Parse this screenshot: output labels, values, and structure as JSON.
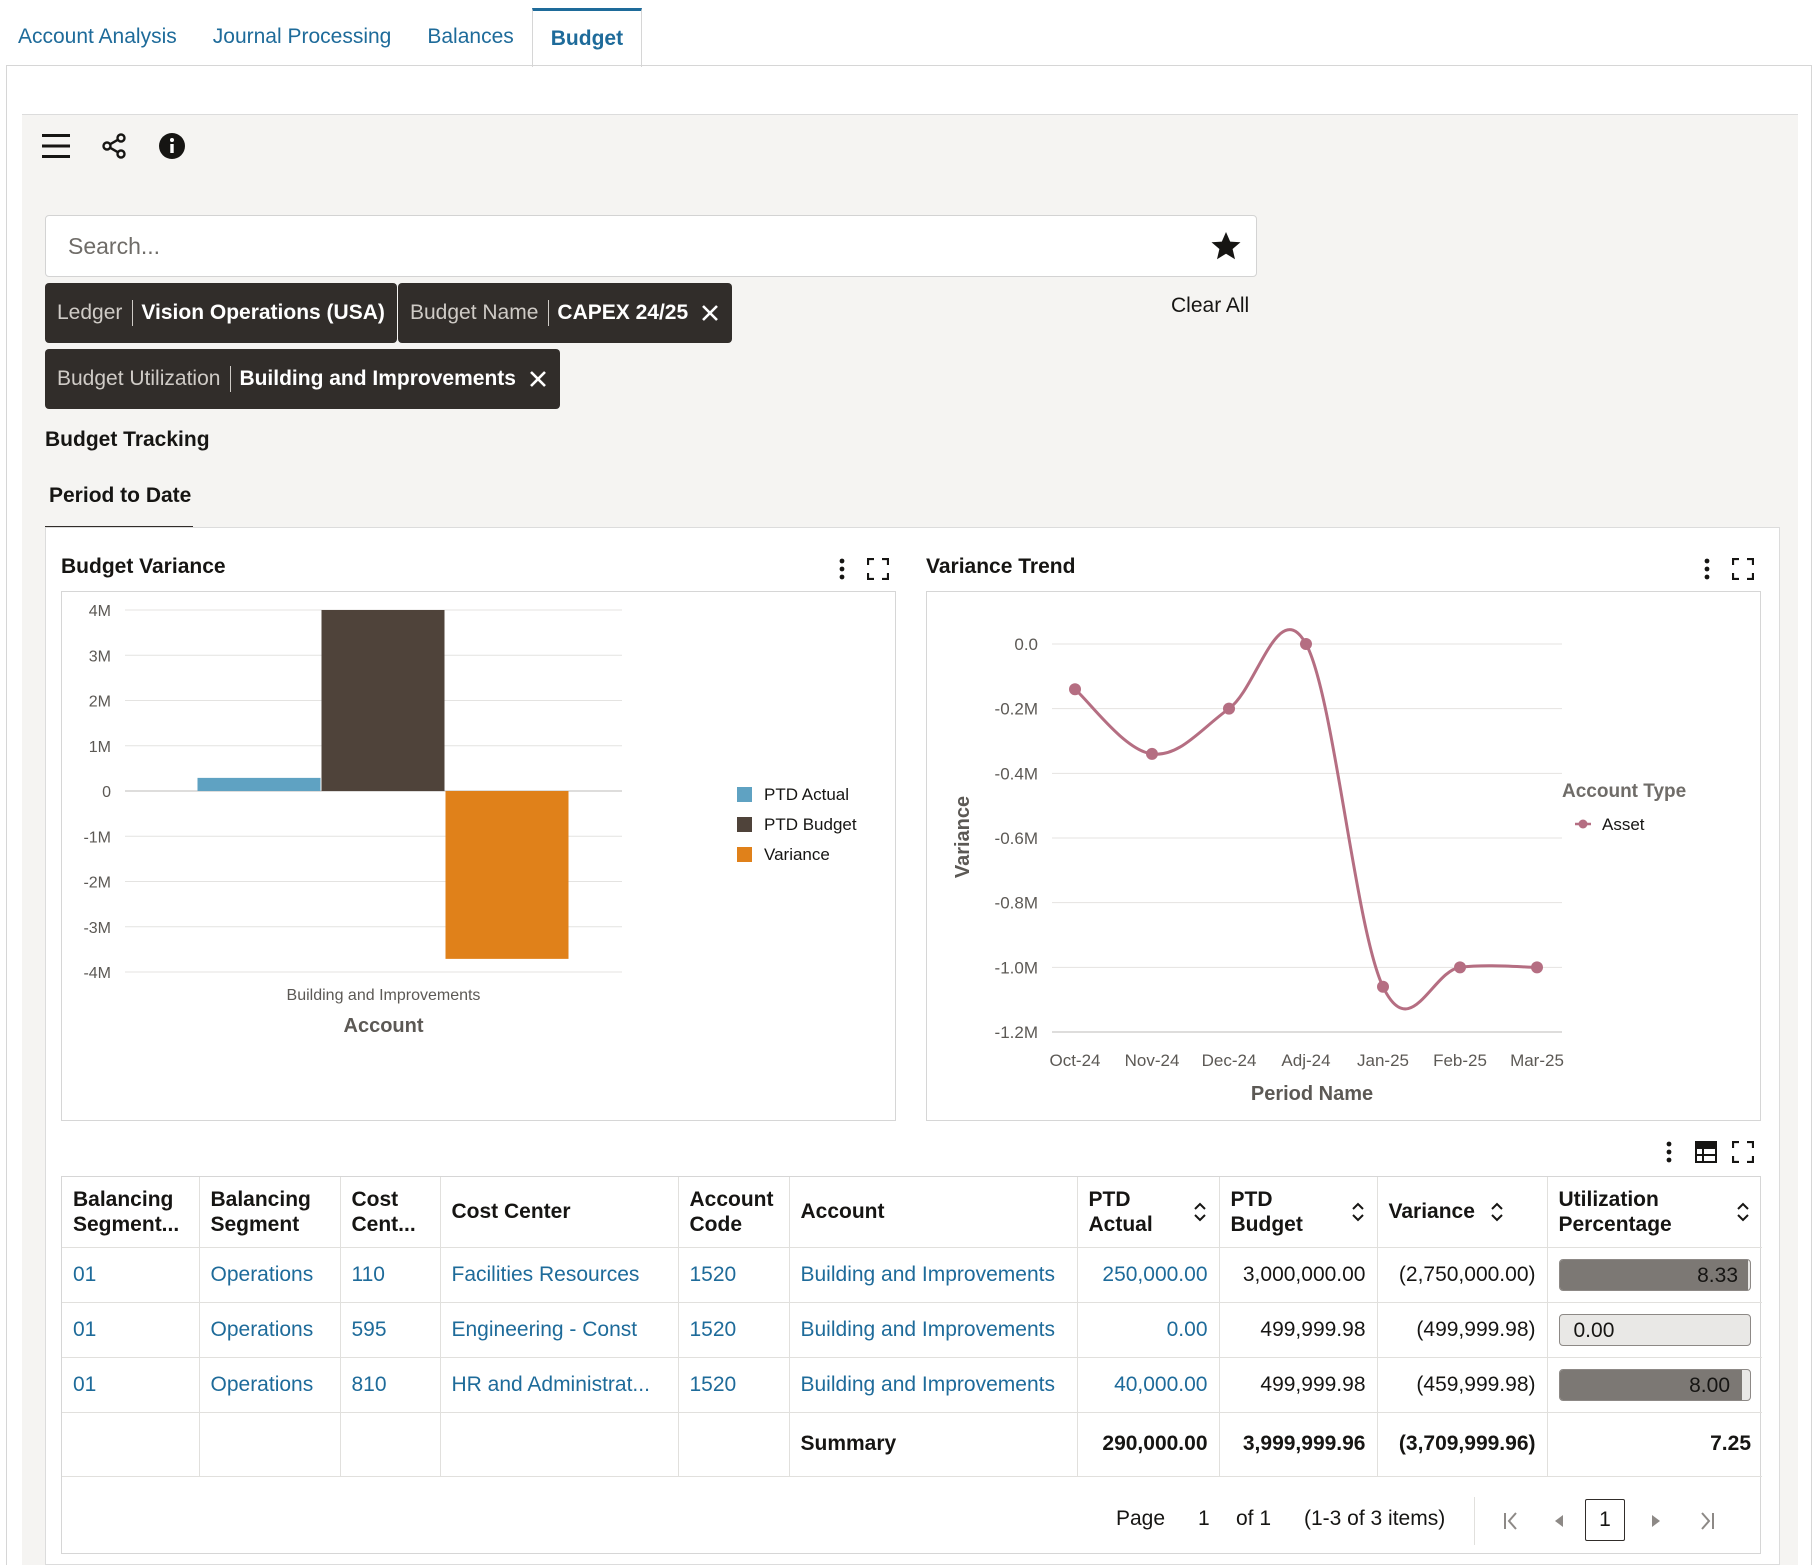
{
  "tabs": [
    "Account Analysis",
    "Journal Processing",
    "Balances",
    "Budget"
  ],
  "active_tab": "Budget",
  "search": {
    "placeholder": "Search..."
  },
  "filters": {
    "ledger": {
      "label": "Ledger",
      "value": "Vision Operations (USA)"
    },
    "budget_name": {
      "label": "Budget Name",
      "value": "CAPEX 24/25"
    },
    "budget_utilization": {
      "label": "Budget Utilization",
      "value": "Building and Improvements"
    },
    "clear_all": "Clear All"
  },
  "section_title": "Budget Tracking",
  "sub_tab": "Period to Date",
  "budget_variance_card": {
    "title": "Budget Variance"
  },
  "variance_trend_card": {
    "title": "Variance Trend"
  },
  "chart_data": [
    {
      "type": "bar",
      "title": "Budget Variance",
      "categories": [
        "Building and Improvements"
      ],
      "series": [
        {
          "name": "PTD Actual",
          "values": [
            290000
          ],
          "color": "#5fa2c2"
        },
        {
          "name": "PTD Budget",
          "values": [
            3999999.96
          ],
          "color": "#4f433a"
        },
        {
          "name": "Variance",
          "values": [
            -3709999.96
          ],
          "color": "#e0811a"
        }
      ],
      "xlabel": "Account",
      "ylabel": "",
      "ylim": [
        -4000000,
        4000000
      ],
      "yticks": [
        4000000,
        3000000,
        2000000,
        1000000,
        0,
        -1000000,
        -2000000,
        -3000000,
        -4000000
      ],
      "ytick_labels": [
        "4M",
        "3M",
        "2M",
        "1M",
        "0",
        "-1M",
        "-2M",
        "-3M",
        "-4M"
      ],
      "grid": true,
      "legend": "right"
    },
    {
      "type": "line",
      "title": "Variance Trend",
      "x": [
        "Oct-24",
        "Nov-24",
        "Dec-24",
        "Adj-24",
        "Jan-25",
        "Feb-25",
        "Mar-25"
      ],
      "series": [
        {
          "name": "Asset",
          "values": [
            -140000,
            -340000,
            -200000,
            0,
            -1060000,
            -1000000,
            -1000000
          ],
          "color": "#b56e82"
        }
      ],
      "xlabel": "Period Name",
      "ylabel": "Variance",
      "legend_title": "Account Type",
      "ylim": [
        -1200000,
        0
      ],
      "yticks": [
        0,
        -200000,
        -400000,
        -600000,
        -800000,
        -1000000,
        -1200000
      ],
      "ytick_labels": [
        "0.0",
        "-0.2M",
        "-0.4M",
        "-0.6M",
        "-0.8M",
        "-1.0M",
        "-1.2M"
      ],
      "grid": true,
      "legend": "right"
    }
  ],
  "table": {
    "columns": [
      "Balancing Segment...",
      "Balancing Segment",
      "Cost Cent...",
      "Cost Center",
      "Account Code",
      "Account",
      "PTD Actual",
      "PTD Budget",
      "Variance",
      "Utilization Percentage"
    ],
    "rows": [
      {
        "bal_seg": "01",
        "bal_seg_desc": "Operations",
        "cc": "110",
        "cc_desc": "Facilities Resources",
        "acct_code": "1520",
        "account": "Building and Improvements",
        "ptd_actual": "250,000.00",
        "ptd_budget": "3,000,000.00",
        "variance": "(2,750,000.00)",
        "util": "8.33",
        "util_fill": 0.99
      },
      {
        "bal_seg": "01",
        "bal_seg_desc": "Operations",
        "cc": "595",
        "cc_desc": "Engineering - Const",
        "acct_code": "1520",
        "account": "Building and Improvements",
        "ptd_actual": "0.00",
        "ptd_budget": "499,999.98",
        "variance": "(499,999.98)",
        "util": "0.00",
        "util_fill": 0
      },
      {
        "bal_seg": "01",
        "bal_seg_desc": "Operations",
        "cc": "810",
        "cc_desc": "HR and Administrat...",
        "acct_code": "1520",
        "account": "Building and Improvements",
        "ptd_actual": "40,000.00",
        "ptd_budget": "499,999.98",
        "variance": "(459,999.98)",
        "util": "8.00",
        "util_fill": 0.96
      }
    ],
    "summary": {
      "label": "Summary",
      "ptd_actual": "290,000.00",
      "ptd_budget": "3,999,999.96",
      "variance": "(3,709,999.96)",
      "util": "7.25"
    }
  },
  "pagination": {
    "page_label": "Page",
    "page": "1",
    "of_label": "of 1",
    "items": "(1-3 of 3 items)",
    "current": "1"
  }
}
